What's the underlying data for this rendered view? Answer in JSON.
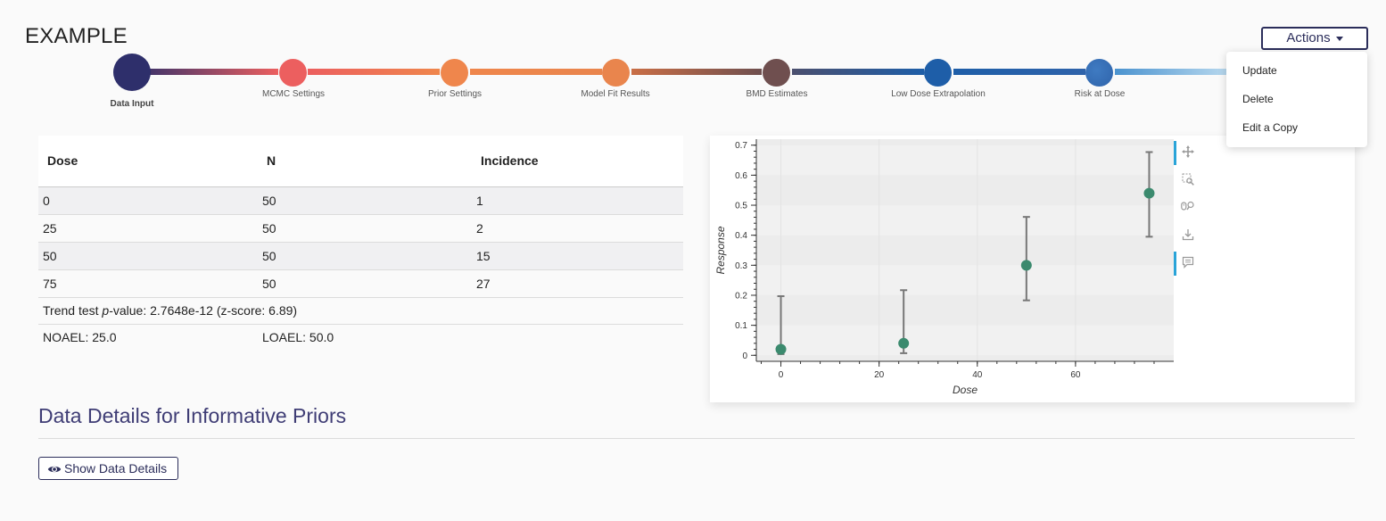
{
  "page": {
    "title": "EXAMPLE"
  },
  "actions": {
    "label": "Actions",
    "menu": [
      "Update",
      "Delete",
      "Edit a Copy"
    ]
  },
  "stepper": {
    "steps": [
      {
        "label": "Data Input",
        "color": "#2e2f6b",
        "active": true
      },
      {
        "label": "MCMC Settings",
        "color": "#ec5f5f",
        "active": false
      },
      {
        "label": "Prior Settings",
        "color": "#ef864c",
        "active": false
      },
      {
        "label": "Model Fit Results",
        "color": "#e9854d",
        "active": false
      },
      {
        "label": "BMD Estimates",
        "color": "#6f4f4f",
        "active": false
      },
      {
        "label": "Low Dose Extrapolation",
        "color": "#1e5ea8",
        "active": false
      },
      {
        "label": "Risk at Dose",
        "color": "#2f63aa",
        "active": false
      }
    ]
  },
  "table": {
    "headers": [
      "Dose",
      "N",
      "Incidence"
    ],
    "rows": [
      [
        "0",
        "50",
        "1"
      ],
      [
        "25",
        "50",
        "2"
      ],
      [
        "50",
        "50",
        "15"
      ],
      [
        "75",
        "50",
        "27"
      ]
    ],
    "trend_prefix": "Trend test ",
    "trend_p": "p",
    "trend_suffix": "-value: 2.7648e-12 (z-score: 6.89)",
    "noael": "NOAEL: 25.0",
    "loael": "LOAEL: 50.0"
  },
  "chart_data": {
    "type": "scatter",
    "xlabel": "Dose",
    "ylabel": "Response",
    "xlim": [
      -5,
      80
    ],
    "ylim": [
      -0.02,
      0.72
    ],
    "xticks": [
      0,
      20,
      40,
      60
    ],
    "yticks": [
      0,
      0.1,
      0.2,
      0.3,
      0.4,
      0.5,
      0.6,
      0.7
    ],
    "points": [
      {
        "x": 0,
        "y": 0.02,
        "lower": 0.004,
        "upper": 0.197
      },
      {
        "x": 25,
        "y": 0.04,
        "lower": 0.007,
        "upper": 0.217
      },
      {
        "x": 50,
        "y": 0.3,
        "lower": 0.183,
        "upper": 0.461
      },
      {
        "x": 75,
        "y": 0.54,
        "lower": 0.395,
        "upper": 0.677
      }
    ],
    "marker_color": "#3b8a6e",
    "errorbar_color": "#777777"
  },
  "toolbar": {
    "icons": [
      "pan-icon",
      "box-zoom-icon",
      "wheel-zoom-icon",
      "save-icon",
      "hover-icon"
    ],
    "accent": "#2aa4d8"
  },
  "details": {
    "title": "Data Details for Informative Priors",
    "button_label": "Show Data Details"
  }
}
